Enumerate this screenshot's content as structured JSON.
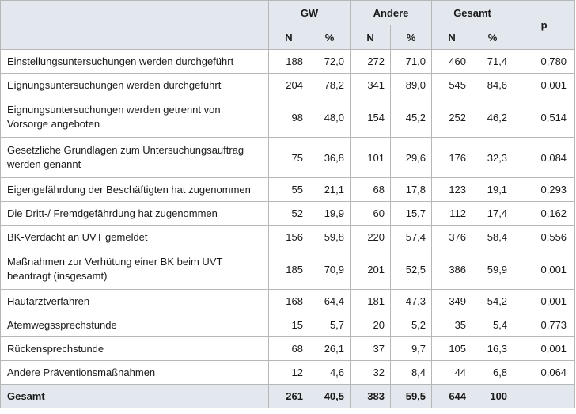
{
  "headers": {
    "group_gw": "GW",
    "group_andere": "Andere",
    "group_gesamt": "Gesamt",
    "p": "p",
    "n": "N",
    "pct": "%"
  },
  "rows": [
    {
      "label": "Einstellungsuntersuchungen werden durchgeführt",
      "gw_n": "188",
      "gw_pct": "72,0",
      "an_n": "272",
      "an_pct": "71,0",
      "ge_n": "460",
      "ge_pct": "71,4",
      "p": "0,780"
    },
    {
      "label": "Eignungsuntersuchungen werden durchgeführt",
      "gw_n": "204",
      "gw_pct": "78,2",
      "an_n": "341",
      "an_pct": "89,0",
      "ge_n": "545",
      "ge_pct": "84,6",
      "p": "0,001"
    },
    {
      "label": "Eignungsuntersuchungen werden getrennt von Vorsorge angeboten",
      "gw_n": "98",
      "gw_pct": "48,0",
      "an_n": "154",
      "an_pct": "45,2",
      "ge_n": "252",
      "ge_pct": "46,2",
      "p": "0,514"
    },
    {
      "label": "Gesetzliche Grundlagen zum Untersuchungsauftrag werden genannt",
      "gw_n": "75",
      "gw_pct": "36,8",
      "an_n": "101",
      "an_pct": "29,6",
      "ge_n": "176",
      "ge_pct": "32,3",
      "p": "0,084"
    },
    {
      "label": "Eigengefährdung der Beschäftigten hat zugenommen",
      "gw_n": "55",
      "gw_pct": "21,1",
      "an_n": "68",
      "an_pct": "17,8",
      "ge_n": "123",
      "ge_pct": "19,1",
      "p": "0,293"
    },
    {
      "label": "Die Dritt-/ Fremdgefährdung hat zugenommen",
      "gw_n": "52",
      "gw_pct": "19,9",
      "an_n": "60",
      "an_pct": "15,7",
      "ge_n": "112",
      "ge_pct": "17,4",
      "p": "0,162"
    },
    {
      "label": "BK-Verdacht an UVT gemeldet",
      "gw_n": "156",
      "gw_pct": "59,8",
      "an_n": "220",
      "an_pct": "57,4",
      "ge_n": "376",
      "ge_pct": "58,4",
      "p": "0,556"
    },
    {
      "label": "Maßnahmen zur Verhütung einer BK beim UVT beantragt (insgesamt)",
      "gw_n": "185",
      "gw_pct": "70,9",
      "an_n": "201",
      "an_pct": "52,5",
      "ge_n": "386",
      "ge_pct": "59,9",
      "p": "0,001"
    },
    {
      "label": "Hautarztverfahren",
      "gw_n": "168",
      "gw_pct": "64,4",
      "an_n": "181",
      "an_pct": "47,3",
      "ge_n": "349",
      "ge_pct": "54,2",
      "p": "0,001"
    },
    {
      "label": "Atemwegssprechstunde",
      "gw_n": "15",
      "gw_pct": "5,7",
      "an_n": "20",
      "an_pct": "5,2",
      "ge_n": "35",
      "ge_pct": "5,4",
      "p": "0,773"
    },
    {
      "label": "Rückensprechstunde",
      "gw_n": "68",
      "gw_pct": "26,1",
      "an_n": "37",
      "an_pct": "9,7",
      "ge_n": "105",
      "ge_pct": "16,3",
      "p": "0,001"
    },
    {
      "label": "Andere Präventionsmaßnahmen",
      "gw_n": "12",
      "gw_pct": "4,6",
      "an_n": "32",
      "an_pct": "8,4",
      "ge_n": "44",
      "ge_pct": "6,8",
      "p": "0,064"
    }
  ],
  "total": {
    "label": "Gesamt",
    "gw_n": "261",
    "gw_pct": "40,5",
    "an_n": "383",
    "an_pct": "59,5",
    "ge_n": "644",
    "ge_pct": "100",
    "p": ""
  }
}
